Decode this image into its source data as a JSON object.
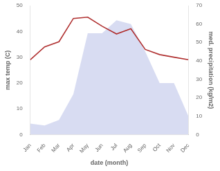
{
  "chart_data": {
    "type": "line",
    "xlabel": "date (month)",
    "ylabel": "max temp (C)",
    "y2label": "med. precipitation (kg/m2)",
    "categories": [
      "Jan",
      "Feb",
      "Mar",
      "Apr",
      "May",
      "Jun",
      "Jul",
      "Aug",
      "Sep",
      "Oct",
      "Nov",
      "Dec"
    ],
    "series": [
      {
        "type": "area",
        "color": "#b8c0e8",
        "axis": "y2",
        "values": [
          6,
          5,
          8,
          22,
          55,
          55,
          62,
          60,
          45,
          28,
          28,
          10
        ]
      },
      {
        "type": "line",
        "color": "#b03030",
        "values": [
          29,
          34,
          36,
          45,
          45.5,
          42,
          39,
          41,
          33,
          31,
          30,
          29
        ]
      }
    ],
    "ylim": [
      0,
      50
    ],
    "yticks": [
      0,
      10,
      20,
      30,
      40,
      50
    ],
    "y2lim": [
      0,
      70
    ],
    "y2ticks": [
      0,
      10,
      20,
      30,
      40,
      50,
      60,
      70
    ],
    "grid": false
  }
}
